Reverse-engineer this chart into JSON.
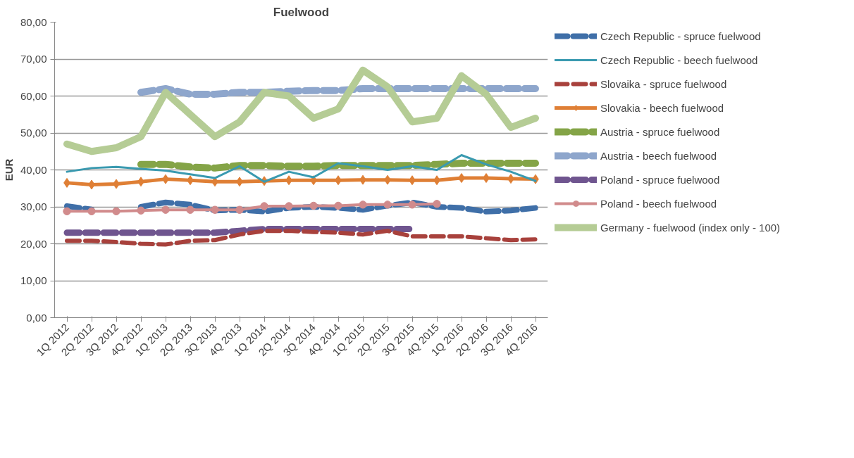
{
  "chart_data": {
    "type": "line",
    "title": "Fuelwood",
    "ylabel": "EUR",
    "categories": [
      "1Q 2012",
      "2Q 2012",
      "3Q 2012",
      "4Q 2012",
      "1Q 2013",
      "2Q 2013",
      "3Q 2013",
      "4Q 2013",
      "1Q 2014",
      "2Q 2014",
      "3Q 2014",
      "4Q 2014",
      "1Q 2015",
      "2Q 2015",
      "3Q 2015",
      "4Q 2015",
      "1Q 2016",
      "2Q 2016",
      "3Q 2016",
      "4Q 2016"
    ],
    "ylim": [
      0,
      80
    ],
    "yticks": [
      {
        "value": 0,
        "label": "0,00"
      },
      {
        "value": 10,
        "label": "10,00"
      },
      {
        "value": 20,
        "label": "20,00"
      },
      {
        "value": 30,
        "label": "30,00"
      },
      {
        "value": 40,
        "label": "40,00"
      },
      {
        "value": 50,
        "label": "50,00"
      },
      {
        "value": 60,
        "label": "60,00"
      },
      {
        "value": 70,
        "label": "70,00"
      },
      {
        "value": 80,
        "label": "80,00"
      }
    ],
    "grid": "y",
    "legend": "right",
    "series": [
      {
        "name": "Czech Republic - spruce fuelwood",
        "color": "#3f6fa8",
        "line_style": "dashed",
        "values": [
          30.2,
          29.3,
          null,
          30,
          31.2,
          30.6,
          29,
          29.2,
          28.7,
          29.7,
          30,
          29.7,
          29.2,
          30.3,
          31.2,
          30,
          29.7,
          28.7,
          29,
          29.7
        ]
      },
      {
        "name": "Czech Republic - beech fuelwood",
        "color": "#3a9ab0",
        "line_style": "solid",
        "values": [
          39.5,
          40.5,
          40.8,
          40.3,
          39.8,
          38.8,
          37.8,
          41,
          36.8,
          39.5,
          38,
          41.8,
          41,
          40,
          41,
          40,
          44,
          41.5,
          39.5,
          37
        ]
      },
      {
        "name": "Slovaika - spruce fuelwood",
        "color": "#a8413c",
        "line_style": "dashed",
        "values": [
          20.8,
          20.8,
          20.5,
          20,
          19.8,
          20.8,
          21,
          22.5,
          23.5,
          23.5,
          23.2,
          23,
          22.5,
          23.5,
          22,
          22,
          22,
          21.5,
          21,
          21.2
        ]
      },
      {
        "name": "Slovakia - beech fuelwood",
        "color": "#df7f35",
        "line_style": "solid",
        "marker": "diamond",
        "values": [
          36.5,
          36,
          36.2,
          36.8,
          37.5,
          37.2,
          36.8,
          36.8,
          37,
          37.2,
          37.2,
          37.2,
          37.3,
          37.3,
          37.2,
          37.2,
          37.8,
          37.8,
          37.6,
          37.5
        ]
      },
      {
        "name": "Austria - spruce fuelwood",
        "color": "#84a447",
        "line_style": "dashed",
        "values": [
          null,
          null,
          null,
          41.5,
          41.5,
          40.8,
          40.5,
          41.2,
          41.2,
          41,
          41,
          41.2,
          41.2,
          41.2,
          41.2,
          41.5,
          41.8,
          41.8,
          41.8,
          41.8
        ]
      },
      {
        "name": "Austria - beech fuelwood",
        "color": "#8ea6cc",
        "line_style": "dashed",
        "values": [
          null,
          null,
          null,
          61,
          62,
          60.5,
          60.5,
          61,
          61,
          61.3,
          61.5,
          61.5,
          62,
          62,
          62,
          62,
          62,
          62,
          62,
          62
        ]
      },
      {
        "name": "Poland - spruce fuelwood",
        "color": "#6f558f",
        "line_style": "dashed",
        "values": [
          23,
          23,
          23,
          23,
          23,
          23,
          23,
          23.5,
          24,
          24,
          24,
          24,
          24,
          24,
          24,
          null,
          null,
          null,
          null,
          null
        ]
      },
      {
        "name": "Poland - beech fuelwood",
        "color": "#d18b8c",
        "line_style": "solid",
        "marker": "circle",
        "values": [
          28.8,
          28.8,
          28.8,
          29,
          29.2,
          29.2,
          29.2,
          29.2,
          30.2,
          30.2,
          30.3,
          30.3,
          30.6,
          30.6,
          30.6,
          30.8,
          null,
          null,
          null,
          null
        ]
      },
      {
        "name": "Germany - fuelwood (index only - 100)",
        "color": "#b5cc95",
        "line_style": "solid",
        "values": [
          47,
          45,
          46,
          49,
          61,
          55,
          49,
          53,
          61,
          60,
          54,
          56.5,
          67,
          62.5,
          53,
          54,
          65.5,
          60.5,
          51.5,
          54
        ]
      }
    ]
  }
}
